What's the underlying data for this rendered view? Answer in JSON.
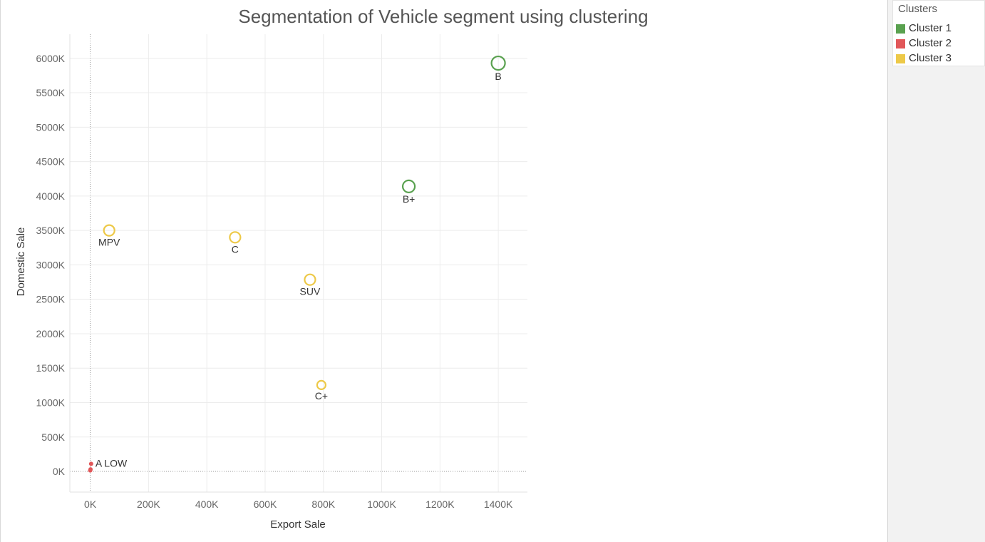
{
  "chart_data": {
    "type": "scatter",
    "title": "Segmentation of Vehicle segment using  clustering",
    "xlabel": "Export Sale",
    "ylabel": "Domestic Sale",
    "xlim": [
      -70,
      1500
    ],
    "ylim": [
      -300,
      6350
    ],
    "x_ticks": [
      0,
      200,
      400,
      600,
      800,
      1000,
      1200,
      1400
    ],
    "x_tick_labels": [
      "0K",
      "200K",
      "400K",
      "600K",
      "800K",
      "1000K",
      "1200K",
      "1400K"
    ],
    "y_ticks": [
      0,
      500,
      1000,
      1500,
      2000,
      2500,
      3000,
      3500,
      4000,
      4500,
      5000,
      5500,
      6000
    ],
    "y_tick_labels": [
      "0K",
      "500K",
      "1000K",
      "1500K",
      "2000K",
      "2500K",
      "3000K",
      "3500K",
      "4000K",
      "4500K",
      "5000K",
      "5500K",
      "6000K"
    ],
    "grid": true,
    "legend_position": "top-right",
    "legend_title": "Clusters",
    "series": [
      {
        "name": "Cluster 1",
        "color": "#59a14f",
        "points": [
          {
            "label": "B",
            "x": 1400,
            "y": 5930,
            "size": 3
          },
          {
            "label": "B+",
            "x": 1093,
            "y": 4140,
            "size": 2
          }
        ]
      },
      {
        "name": "Cluster 2",
        "color": "#e15759",
        "points": [
          {
            "label": "A LOW",
            "x": 3,
            "y": 110,
            "size": 0
          },
          {
            "label": "",
            "x": 1,
            "y": 30,
            "size": 0
          },
          {
            "label": "",
            "x": 0,
            "y": 15,
            "size": 0
          }
        ]
      },
      {
        "name": "Cluster 3",
        "color": "#edc948",
        "points": [
          {
            "label": "MPV",
            "x": 65,
            "y": 3500,
            "size": 1
          },
          {
            "label": "C",
            "x": 497,
            "y": 3400,
            "size": 1
          },
          {
            "label": "SUV",
            "x": 754,
            "y": 2785,
            "size": 1
          },
          {
            "label": "C+",
            "x": 793,
            "y": 1255,
            "size": 0
          }
        ]
      }
    ]
  }
}
